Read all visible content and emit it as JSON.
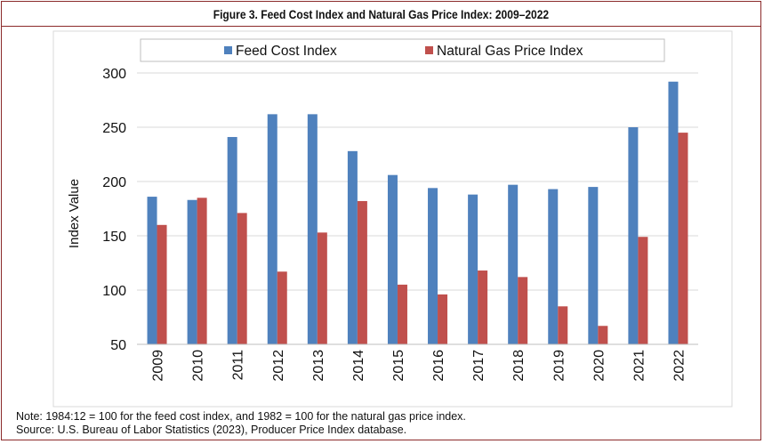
{
  "chart_data": {
    "type": "bar",
    "title": "Figure 3. Feed Cost Index and Natural Gas Price Index: 2009–2022",
    "xlabel": "",
    "ylabel": "Index Value",
    "ylim": [
      50,
      300
    ],
    "yticks": [
      "50",
      "100",
      "150",
      "200",
      "250",
      "300"
    ],
    "categories": [
      "2009",
      "2010",
      "2011",
      "2012",
      "2013",
      "2014",
      "2015",
      "2016",
      "2017",
      "2018",
      "2019",
      "2020",
      "2021",
      "2022"
    ],
    "series": [
      {
        "name": "Feed Cost Index",
        "color": "#4f81bd",
        "values": [
          186,
          183,
          241,
          262,
          262,
          228,
          206,
          194,
          188,
          197,
          193,
          195,
          250,
          292
        ]
      },
      {
        "name": "Natural Gas Price Index",
        "color": "#c0504d",
        "values": [
          160,
          185,
          171,
          117,
          153,
          182,
          105,
          96,
          118,
          112,
          85,
          67,
          149,
          245
        ]
      }
    ],
    "grid": true,
    "legend_position": "top"
  },
  "notes": {
    "line1": "Note: 1984:12 = 100 for the feed cost index, and 1982 = 100 for the natural gas price index.",
    "line2": "Source: U.S. Bureau of Labor Statistics (2023), Producer Price Index database."
  }
}
